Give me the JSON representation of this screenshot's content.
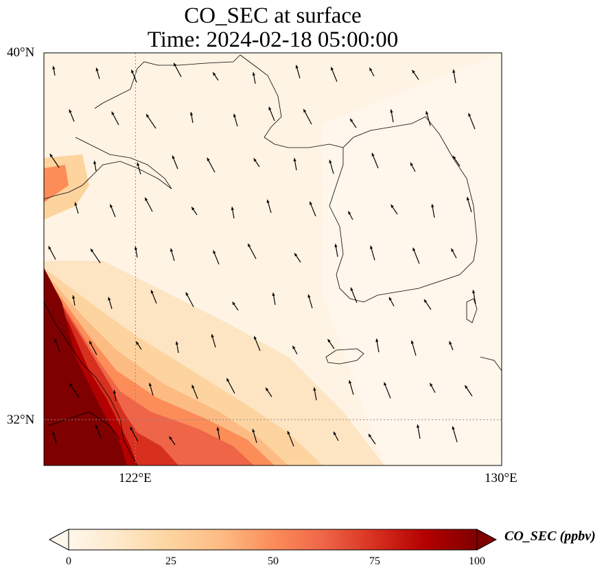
{
  "title": {
    "line1": "CO_SEC at surface",
    "line2": "Time: 2024-02-18 05:00:00"
  },
  "axes": {
    "lat_ticks": [
      {
        "value": 40,
        "label": "40°N"
      },
      {
        "value": 32,
        "label": "32°N"
      }
    ],
    "lon_ticks": [
      {
        "value": 122,
        "label": "122°E"
      },
      {
        "value": 130,
        "label": "130°E"
      }
    ],
    "extent": {
      "lon_min": 120,
      "lon_max": 130,
      "lat_min": 31,
      "lat_max": 40
    },
    "gridlines": "dotted gray at 122°E and 32°N"
  },
  "colorbar": {
    "label": "CO_SEC (ppbv)",
    "ticks": [
      "0",
      "25",
      "50",
      "75",
      "100"
    ],
    "min": 0,
    "max": 100,
    "colormap": "OrRd",
    "extend": "both",
    "colors": [
      "#fff7ec",
      "#fee8c8",
      "#fdd49e",
      "#fdbb84",
      "#fc8d59",
      "#ef6548",
      "#d7301f",
      "#b30000",
      "#7f0000"
    ]
  },
  "chart_data": {
    "type": "heatmap",
    "variable": "CO_SEC",
    "units": "ppbv",
    "level": "surface",
    "time": "2024-02-18 05:00:00",
    "lon_range": [
      120,
      130
    ],
    "lat_range": [
      31,
      40
    ],
    "vmin": 0,
    "vmax": 100,
    "field_description": "Concentrations up to and above 100 ppbv over the Yangtze delta / southwest corner; a plume of 50–90 ppbv extends northeast along the Chinese coast toward 124°E, 31–32°N; 10–25 ppbv over the Yellow Sea; values below 10 over Korea and the Bohai/Liaodong area.",
    "wind_vectors": "arrows generally point north-northwest across the domain"
  },
  "colors": {
    "coastline": "#000000",
    "gridline": "#888888",
    "arrow": "#000000"
  }
}
